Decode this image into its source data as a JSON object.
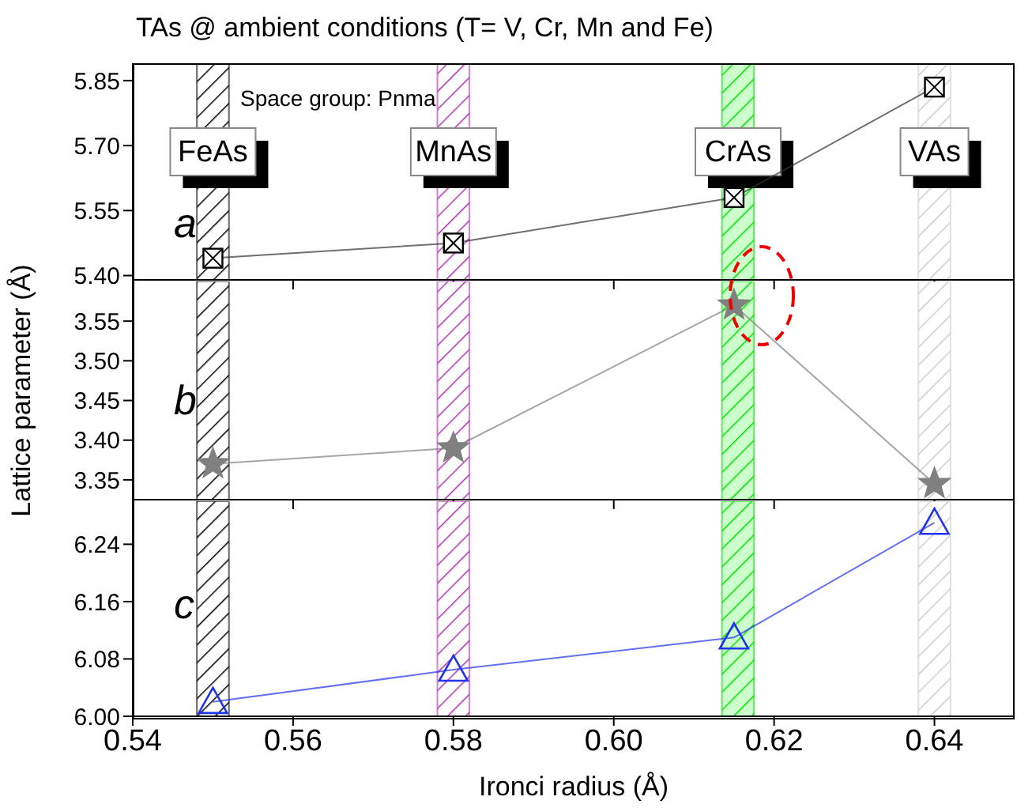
{
  "chart_data": [
    {
      "type": "line",
      "title": "TAs @ ambient conditions (T= V, Cr, Mn and Fe)",
      "annotations": [
        "Space group: Pnma",
        "a"
      ],
      "x": [
        0.55,
        0.58,
        0.615,
        0.64
      ],
      "series": [
        {
          "color": "#333333",
          "values": [
            5.44,
            5.475,
            5.58,
            5.835
          ]
        }
      ],
      "marker": "square",
      "xlim": [
        0.54,
        0.65
      ],
      "xticks": [
        {
          "value": 0.54,
          "label": null
        },
        {
          "value": 0.56,
          "label": null
        },
        {
          "value": 0.58,
          "label": null
        },
        {
          "value": 0.6,
          "label": null
        },
        {
          "value": 0.62,
          "label": null
        },
        {
          "value": 0.64,
          "label": null
        }
      ],
      "ylim": [
        5.39,
        5.89
      ],
      "yticks": [
        {
          "value": 5.4,
          "label": "5.40"
        },
        {
          "value": 5.55,
          "label": "5.55"
        },
        {
          "value": 5.7,
          "label": "5.70"
        },
        {
          "value": 5.85,
          "label": "5.85"
        }
      ],
      "tick_labels": "y",
      "grid": false,
      "legend": false,
      "bands": [
        {
          "axis": "x",
          "from": 0.548,
          "to": 0.552,
          "label": "FeAs",
          "color": "#000000"
        },
        {
          "axis": "x",
          "from": 0.578,
          "to": 0.582,
          "label": "MnAs",
          "color": "#b030b0"
        },
        {
          "axis": "x",
          "from": 0.6135,
          "to": 0.6175,
          "label": "CrAs",
          "color": "#00dd00"
        },
        {
          "axis": "x",
          "from": 0.638,
          "to": 0.642,
          "label": "VAs",
          "color": "#cccccc"
        }
      ]
    },
    {
      "type": "line",
      "ylabel": "Lattice parameter (Å)",
      "annotations": [
        "b"
      ],
      "x": [
        0.55,
        0.58,
        0.615,
        0.64
      ],
      "series": [
        {
          "color": "#808080",
          "values": [
            3.37,
            3.39,
            3.57,
            3.345
          ]
        }
      ],
      "marker": "star",
      "xlim": [
        0.54,
        0.65
      ],
      "xticks": [
        {
          "value": 0.54,
          "label": null
        },
        {
          "value": 0.56,
          "label": null
        },
        {
          "value": 0.58,
          "label": null
        },
        {
          "value": 0.6,
          "label": null
        },
        {
          "value": 0.62,
          "label": null
        },
        {
          "value": 0.64,
          "label": null
        }
      ],
      "ylim": [
        3.325,
        3.6
      ],
      "yticks": [
        {
          "value": 3.35,
          "label": "3.35"
        },
        {
          "value": 3.4,
          "label": "3.40"
        },
        {
          "value": 3.45,
          "label": "3.45"
        },
        {
          "value": 3.5,
          "label": "3.50"
        },
        {
          "value": 3.55,
          "label": "3.55"
        }
      ],
      "tick_labels": "y",
      "grid": false,
      "legend": false,
      "bands": [
        {
          "axis": "x",
          "from": 0.548,
          "to": 0.552,
          "color": "#000000"
        },
        {
          "axis": "x",
          "from": 0.578,
          "to": 0.582,
          "color": "#b030b0"
        },
        {
          "axis": "x",
          "from": 0.6135,
          "to": 0.6175,
          "color": "#00dd00"
        },
        {
          "axis": "x",
          "from": 0.638,
          "to": 0.642,
          "color": "#cccccc"
        }
      ]
    },
    {
      "type": "line",
      "xlabel": "Ironci radius (Å)",
      "annotations": [
        "c"
      ],
      "x": [
        0.55,
        0.58,
        0.615,
        0.64
      ],
      "series": [
        {
          "color": "#2233ee",
          "values": [
            6.02,
            6.065,
            6.11,
            6.27
          ]
        }
      ],
      "marker": "triangle",
      "xlim": [
        0.54,
        0.65
      ],
      "xticks": [
        {
          "value": 0.54,
          "label": "0.54"
        },
        {
          "value": 0.56,
          "label": "0.56"
        },
        {
          "value": 0.58,
          "label": "0.58"
        },
        {
          "value": 0.6,
          "label": "0.60"
        },
        {
          "value": 0.62,
          "label": "0.62"
        },
        {
          "value": 0.64,
          "label": "0.64"
        }
      ],
      "ylim": [
        6.0,
        6.3
      ],
      "yticks": [
        {
          "value": 6.0,
          "label": "6.00"
        },
        {
          "value": 6.08,
          "label": "6.08"
        },
        {
          "value": 6.16,
          "label": "6.16"
        },
        {
          "value": 6.24,
          "label": "6.24"
        }
      ],
      "grid": false,
      "legend": false,
      "bands": [
        {
          "axis": "x",
          "from": 0.548,
          "to": 0.552,
          "color": "#000000"
        },
        {
          "axis": "x",
          "from": 0.578,
          "to": 0.582,
          "color": "#b030b0"
        },
        {
          "axis": "x",
          "from": 0.6135,
          "to": 0.6175,
          "color": "#00dd00"
        },
        {
          "axis": "x",
          "from": 0.638,
          "to": 0.642,
          "color": "#cccccc"
        }
      ]
    }
  ]
}
